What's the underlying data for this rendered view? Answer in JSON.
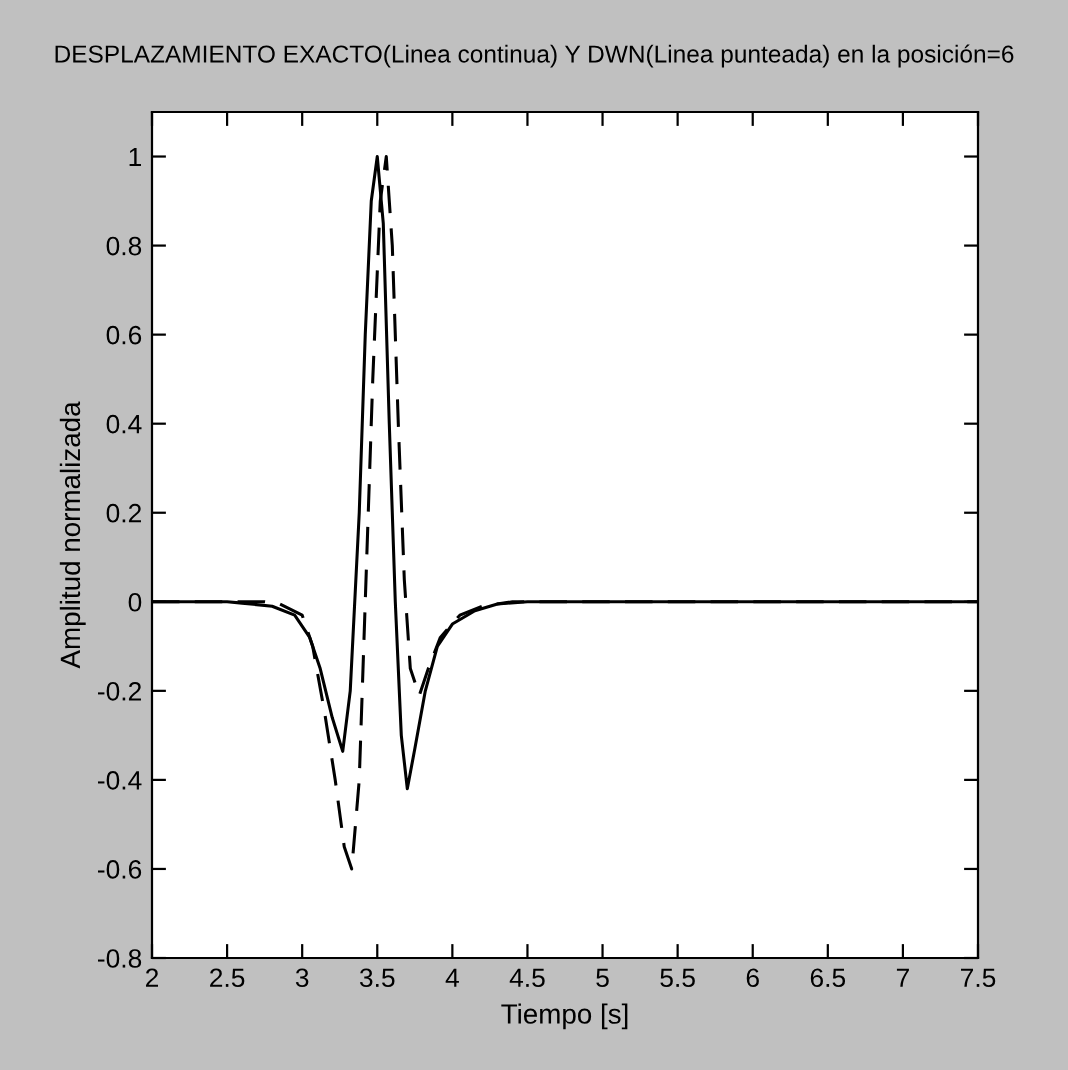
{
  "chart_data": {
    "type": "line",
    "title": "DESPLAZAMIENTO EXACTO(Linea continua) Y DWN(Linea punteada) en la posición=6",
    "xlabel": "Tiempo [s]",
    "ylabel": "Amplitud normalizada",
    "series": [
      {
        "color": "#000000",
        "line_style": "solid",
        "x": [
          2.0,
          2.5,
          2.6,
          2.8,
          2.95,
          3.05,
          3.12,
          3.2,
          3.27,
          3.32,
          3.38,
          3.42,
          3.46,
          3.5,
          3.54,
          3.58,
          3.62,
          3.66,
          3.7,
          3.75,
          3.82,
          3.9,
          4.0,
          4.15,
          4.3,
          4.5,
          7.5
        ],
        "values": [
          0,
          0,
          -0.003,
          -0.01,
          -0.03,
          -0.08,
          -0.15,
          -0.26,
          -0.336,
          -0.2,
          0.2,
          0.6,
          0.9,
          1.0,
          0.85,
          0.4,
          0,
          -0.3,
          -0.42,
          -0.33,
          -0.2,
          -0.1,
          -0.05,
          -0.02,
          -0.005,
          0,
          0
        ]
      },
      {
        "color": "#000000",
        "line_style": "dashed",
        "x": [
          2.0,
          2.75,
          2.85,
          3.0,
          3.07,
          3.15,
          3.22,
          3.28,
          3.33,
          3.38,
          3.42,
          3.47,
          3.52,
          3.56,
          3.6,
          3.64,
          3.68,
          3.72,
          3.78,
          3.84,
          3.92,
          4.05,
          4.2,
          4.4,
          7.5
        ],
        "values": [
          0,
          0,
          -0.005,
          -0.03,
          -0.1,
          -0.25,
          -0.4,
          -0.55,
          -0.6,
          -0.4,
          0,
          0.5,
          0.9,
          1.0,
          0.8,
          0.4,
          0.05,
          -0.15,
          -0.21,
          -0.15,
          -0.08,
          -0.03,
          -0.01,
          0,
          0
        ]
      }
    ],
    "xlim": [
      2,
      7.5
    ],
    "xticks": [
      2,
      2.5,
      3,
      3.5,
      4,
      4.5,
      5,
      5.5,
      6,
      6.5,
      7,
      7.5
    ],
    "ylim": [
      -0.8,
      1.1
    ],
    "yticks": [
      -0.8,
      -0.6,
      -0.4,
      -0.2,
      0,
      0.2,
      0.4,
      0.6,
      0.8,
      1
    ],
    "grid": false,
    "marker": "none"
  }
}
